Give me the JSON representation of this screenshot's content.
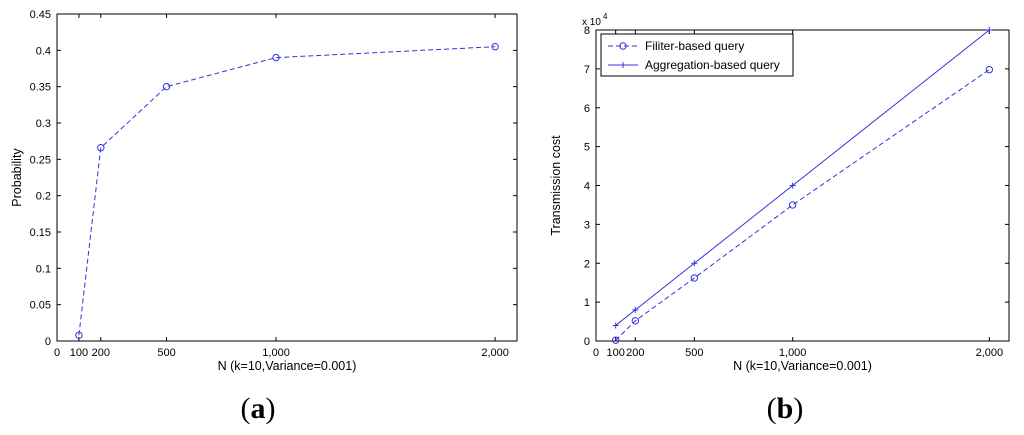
{
  "chart_data": [
    {
      "id": "a",
      "type": "line",
      "panel_label": "a",
      "xlabel": "N (k=10,Variance=0.001)",
      "ylabel": "Probability",
      "xlim": [
        0,
        2100
      ],
      "ylim": [
        0,
        0.45
      ],
      "x_ticks": [
        0,
        100,
        200,
        500,
        1000,
        2000
      ],
      "x_tick_labels": [
        "0",
        "100",
        "200",
        "500",
        "1,000",
        "2,000"
      ],
      "y_ticks": [
        0,
        0.05,
        0.1,
        0.15,
        0.2,
        0.25,
        0.3,
        0.35,
        0.4,
        0.45
      ],
      "y_tick_labels": [
        "0",
        "0.05",
        "0.1",
        "0.15",
        "0.2",
        "0.25",
        "0.3",
        "0.35",
        "0.4",
        "0.45"
      ],
      "grid": false,
      "legend": "none",
      "series": [
        {
          "x": [
            100,
            200,
            500,
            1000,
            2000
          ],
          "values": [
            0.008,
            0.266,
            0.35,
            0.39,
            0.405
          ],
          "color": "#3333dd",
          "line": "dashed",
          "marker": "circle"
        }
      ]
    },
    {
      "id": "b",
      "type": "line",
      "panel_label": "b",
      "xlabel": "N (k=10,Variance=0.001)",
      "ylabel": "Transmission cost",
      "xlim": [
        0,
        2100
      ],
      "ylim": [
        0,
        80000
      ],
      "y_exponent_base": "x 10",
      "y_exponent_power": "4",
      "x_ticks": [
        0,
        100,
        200,
        500,
        1000,
        2000
      ],
      "x_tick_labels": [
        "0",
        "100",
        "200",
        "500",
        "1,000",
        "2,000"
      ],
      "y_ticks": [
        0,
        10000,
        20000,
        30000,
        40000,
        50000,
        60000,
        70000,
        80000
      ],
      "y_tick_labels": [
        "0",
        "1",
        "2",
        "3",
        "4",
        "5",
        "6",
        "7",
        "8"
      ],
      "grid": false,
      "legend": "top-left",
      "series": [
        {
          "name": "Filiter-based query",
          "x": [
            100,
            200,
            500,
            1000,
            2000
          ],
          "values": [
            200,
            5200,
            16200,
            35000,
            69800
          ],
          "color": "#3333dd",
          "line": "dashed",
          "marker": "circle"
        },
        {
          "name": "Aggregation-based query",
          "x": [
            100,
            200,
            500,
            1000,
            2000
          ],
          "values": [
            4000,
            8000,
            20000,
            40000,
            80000
          ],
          "color": "#3333dd",
          "line": "solid",
          "marker": "plus"
        }
      ]
    }
  ]
}
